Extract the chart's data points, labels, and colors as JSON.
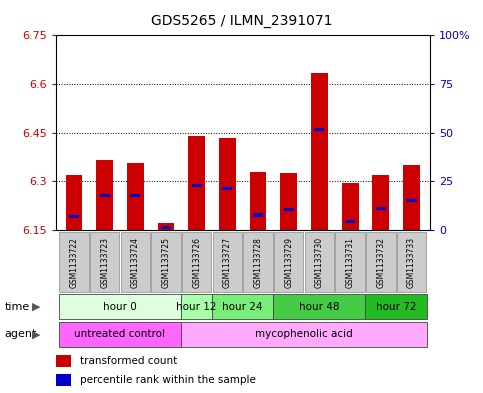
{
  "title": "GDS5265 / ILMN_2391071",
  "samples": [
    "GSM1133722",
    "GSM1133723",
    "GSM1133724",
    "GSM1133725",
    "GSM1133726",
    "GSM1133727",
    "GSM1133728",
    "GSM1133729",
    "GSM1133730",
    "GSM1133731",
    "GSM1133732",
    "GSM1133733"
  ],
  "bar_tops": [
    6.32,
    6.365,
    6.355,
    6.17,
    6.44,
    6.435,
    6.33,
    6.325,
    6.635,
    6.295,
    6.32,
    6.35
  ],
  "bar_base": 6.15,
  "blue_vals": [
    6.192,
    6.256,
    6.255,
    6.157,
    6.288,
    6.278,
    6.196,
    6.212,
    6.46,
    6.176,
    6.215,
    6.242
  ],
  "ylim_left": [
    6.15,
    6.75
  ],
  "ylim_right": [
    0,
    100
  ],
  "yticks_left": [
    6.15,
    6.3,
    6.45,
    6.6,
    6.75
  ],
  "yticks_right": [
    0,
    25,
    50,
    75,
    100
  ],
  "ytick_labels_left": [
    "6.15",
    "6.3",
    "6.45",
    "6.6",
    "6.75"
  ],
  "ytick_labels_right": [
    "0",
    "25",
    "50",
    "75",
    "100%"
  ],
  "gridlines": [
    6.3,
    6.45,
    6.6,
    6.75
  ],
  "bar_color": "#cc0000",
  "blue_color": "#0000cc",
  "time_groups": [
    {
      "label": "hour 0",
      "start": 0,
      "end": 3,
      "color": "#ddffdd"
    },
    {
      "label": "hour 12",
      "start": 4,
      "end": 4,
      "color": "#aaffaa"
    },
    {
      "label": "hour 24",
      "start": 5,
      "end": 6,
      "color": "#77ee77"
    },
    {
      "label": "hour 48",
      "start": 7,
      "end": 9,
      "color": "#44cc44"
    },
    {
      "label": "hour 72",
      "start": 10,
      "end": 11,
      "color": "#22bb22"
    }
  ],
  "agent_groups": [
    {
      "label": "untreated control",
      "start": 0,
      "end": 3,
      "color": "#ff66ff"
    },
    {
      "label": "mycophenolic acid",
      "start": 4,
      "end": 11,
      "color": "#ffaaff"
    }
  ],
  "sample_box_color": "#cccccc",
  "sample_box_edge": "#888888",
  "bg_color": "#ffffff",
  "label_color_left": "#cc0000",
  "label_color_right": "#0000cc",
  "legend_red_label": "transformed count",
  "legend_blue_label": "percentile rank within the sample",
  "time_label": "time",
  "agent_label": "agent"
}
